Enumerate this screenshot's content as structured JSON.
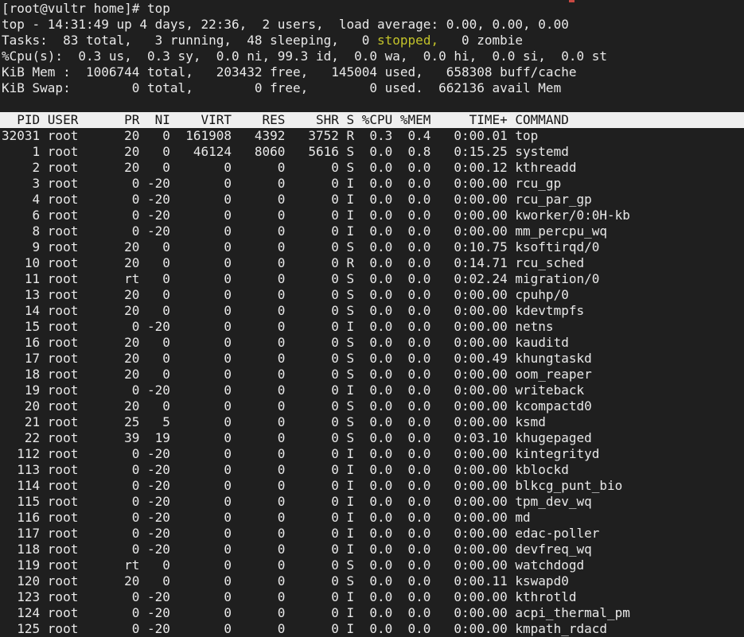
{
  "colors": {
    "background": "#1f1f1f",
    "foreground": "#e9e9e9",
    "highlight_yellow": "#c3c32a",
    "header_bg": "#efefef",
    "header_fg": "#141414",
    "artifact_red": "#c94942"
  },
  "terminal": {
    "prompt_line": "[root@vultr home]# top",
    "summary": {
      "uptime_line": "top - 14:31:49 up 4 days, 22:36,  2 users,  load average: 0.00, 0.00, 0.00",
      "tasks_line": {
        "pre": "Tasks:  83 total,   3 running,  48 sleeping,   0 ",
        "highlighted": "stopped,",
        "post": "   0 zombie"
      },
      "cpu_line": "%Cpu(s):  0.3 us,  0.3 sy,  0.0 ni, 99.3 id,  0.0 wa,  0.0 hi,  0.0 si,  0.0 st",
      "mem_line": "KiB Mem :  1006744 total,   203432 free,   145004 used,   658308 buff/cache",
      "swap_line": "KiB Swap:        0 total,        0 free,        0 used.  662136 avail Mem"
    },
    "process_table": {
      "columns": [
        "PID",
        "USER",
        "PR",
        "NI",
        "VIRT",
        "RES",
        "SHR",
        "S",
        "%CPU",
        "%MEM",
        "TIME+",
        "COMMAND"
      ],
      "rows": [
        [
          "32031",
          "root",
          "20",
          "0",
          "161908",
          "4392",
          "3752",
          "R",
          "0.3",
          "0.4",
          "0:00.01",
          "top"
        ],
        [
          "1",
          "root",
          "20",
          "0",
          "46124",
          "8060",
          "5616",
          "S",
          "0.0",
          "0.8",
          "0:15.25",
          "systemd"
        ],
        [
          "2",
          "root",
          "20",
          "0",
          "0",
          "0",
          "0",
          "S",
          "0.0",
          "0.0",
          "0:00.12",
          "kthreadd"
        ],
        [
          "3",
          "root",
          "0",
          "-20",
          "0",
          "0",
          "0",
          "I",
          "0.0",
          "0.0",
          "0:00.00",
          "rcu_gp"
        ],
        [
          "4",
          "root",
          "0",
          "-20",
          "0",
          "0",
          "0",
          "I",
          "0.0",
          "0.0",
          "0:00.00",
          "rcu_par_gp"
        ],
        [
          "6",
          "root",
          "0",
          "-20",
          "0",
          "0",
          "0",
          "I",
          "0.0",
          "0.0",
          "0:00.00",
          "kworker/0:0H-kb"
        ],
        [
          "8",
          "root",
          "0",
          "-20",
          "0",
          "0",
          "0",
          "I",
          "0.0",
          "0.0",
          "0:00.00",
          "mm_percpu_wq"
        ],
        [
          "9",
          "root",
          "20",
          "0",
          "0",
          "0",
          "0",
          "S",
          "0.0",
          "0.0",
          "0:10.75",
          "ksoftirqd/0"
        ],
        [
          "10",
          "root",
          "20",
          "0",
          "0",
          "0",
          "0",
          "R",
          "0.0",
          "0.0",
          "0:14.71",
          "rcu_sched"
        ],
        [
          "11",
          "root",
          "rt",
          "0",
          "0",
          "0",
          "0",
          "S",
          "0.0",
          "0.0",
          "0:02.24",
          "migration/0"
        ],
        [
          "13",
          "root",
          "20",
          "0",
          "0",
          "0",
          "0",
          "S",
          "0.0",
          "0.0",
          "0:00.00",
          "cpuhp/0"
        ],
        [
          "14",
          "root",
          "20",
          "0",
          "0",
          "0",
          "0",
          "S",
          "0.0",
          "0.0",
          "0:00.00",
          "kdevtmpfs"
        ],
        [
          "15",
          "root",
          "0",
          "-20",
          "0",
          "0",
          "0",
          "I",
          "0.0",
          "0.0",
          "0:00.00",
          "netns"
        ],
        [
          "16",
          "root",
          "20",
          "0",
          "0",
          "0",
          "0",
          "S",
          "0.0",
          "0.0",
          "0:00.00",
          "kauditd"
        ],
        [
          "17",
          "root",
          "20",
          "0",
          "0",
          "0",
          "0",
          "S",
          "0.0",
          "0.0",
          "0:00.49",
          "khungtaskd"
        ],
        [
          "18",
          "root",
          "20",
          "0",
          "0",
          "0",
          "0",
          "S",
          "0.0",
          "0.0",
          "0:00.00",
          "oom_reaper"
        ],
        [
          "19",
          "root",
          "0",
          "-20",
          "0",
          "0",
          "0",
          "I",
          "0.0",
          "0.0",
          "0:00.00",
          "writeback"
        ],
        [
          "20",
          "root",
          "20",
          "0",
          "0",
          "0",
          "0",
          "S",
          "0.0",
          "0.0",
          "0:00.00",
          "kcompactd0"
        ],
        [
          "21",
          "root",
          "25",
          "5",
          "0",
          "0",
          "0",
          "S",
          "0.0",
          "0.0",
          "0:00.00",
          "ksmd"
        ],
        [
          "22",
          "root",
          "39",
          "19",
          "0",
          "0",
          "0",
          "S",
          "0.0",
          "0.0",
          "0:03.10",
          "khugepaged"
        ],
        [
          "112",
          "root",
          "0",
          "-20",
          "0",
          "0",
          "0",
          "I",
          "0.0",
          "0.0",
          "0:00.00",
          "kintegrityd"
        ],
        [
          "113",
          "root",
          "0",
          "-20",
          "0",
          "0",
          "0",
          "I",
          "0.0",
          "0.0",
          "0:00.00",
          "kblockd"
        ],
        [
          "114",
          "root",
          "0",
          "-20",
          "0",
          "0",
          "0",
          "I",
          "0.0",
          "0.0",
          "0:00.00",
          "blkcg_punt_bio"
        ],
        [
          "115",
          "root",
          "0",
          "-20",
          "0",
          "0",
          "0",
          "I",
          "0.0",
          "0.0",
          "0:00.00",
          "tpm_dev_wq"
        ],
        [
          "116",
          "root",
          "0",
          "-20",
          "0",
          "0",
          "0",
          "I",
          "0.0",
          "0.0",
          "0:00.00",
          "md"
        ],
        [
          "117",
          "root",
          "0",
          "-20",
          "0",
          "0",
          "0",
          "I",
          "0.0",
          "0.0",
          "0:00.00",
          "edac-poller"
        ],
        [
          "118",
          "root",
          "0",
          "-20",
          "0",
          "0",
          "0",
          "I",
          "0.0",
          "0.0",
          "0:00.00",
          "devfreq_wq"
        ],
        [
          "119",
          "root",
          "rt",
          "0",
          "0",
          "0",
          "0",
          "S",
          "0.0",
          "0.0",
          "0:00.00",
          "watchdogd"
        ],
        [
          "120",
          "root",
          "20",
          "0",
          "0",
          "0",
          "0",
          "S",
          "0.0",
          "0.0",
          "0:00.11",
          "kswapd0"
        ],
        [
          "123",
          "root",
          "0",
          "-20",
          "0",
          "0",
          "0",
          "I",
          "0.0",
          "0.0",
          "0:00.00",
          "kthrotld"
        ],
        [
          "124",
          "root",
          "0",
          "-20",
          "0",
          "0",
          "0",
          "I",
          "0.0",
          "0.0",
          "0:00.00",
          "acpi_thermal_pm"
        ],
        [
          "125",
          "root",
          "0",
          "-20",
          "0",
          "0",
          "0",
          "I",
          "0.0",
          "0.0",
          "0:00.00",
          "kmpath_rdacd"
        ]
      ]
    }
  }
}
